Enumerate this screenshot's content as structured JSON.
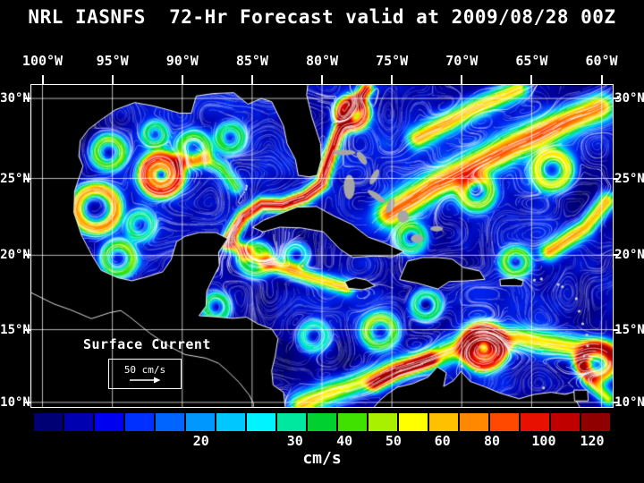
{
  "title": "NRL IASNFS  72-Hr Forecast valid at 2009/08/28 00Z",
  "axes": {
    "lon_ticks": [
      {
        "label": "100°W",
        "lon": -100
      },
      {
        "label": "95°W",
        "lon": -95
      },
      {
        "label": "90°W",
        "lon": -90
      },
      {
        "label": "85°W",
        "lon": -85
      },
      {
        "label": "80°W",
        "lon": -80
      },
      {
        "label": "75°W",
        "lon": -75
      },
      {
        "label": "70°W",
        "lon": -70
      },
      {
        "label": "65°W",
        "lon": -65
      },
      {
        "label": "60°W",
        "lon": -60
      }
    ],
    "lat_ticks": [
      {
        "label": "30°N",
        "lat": 30
      },
      {
        "label": "25°N",
        "lat": 25
      },
      {
        "label": "20°N",
        "lat": 20
      },
      {
        "label": "15°N",
        "lat": 15
      },
      {
        "label": "10°N",
        "lat": 10
      }
    ]
  },
  "map_overlay": {
    "caption": "Surface Current",
    "scale_text": "50 cm/s"
  },
  "colorbar": {
    "units": "cm/s",
    "segment_colors": [
      "#000074",
      "#0000b0",
      "#0000f0",
      "#0030ff",
      "#0064ff",
      "#0098ff",
      "#00c8ff",
      "#00f4ff",
      "#00e8a0",
      "#00d030",
      "#40e000",
      "#a8f000",
      "#ffff00",
      "#ffc000",
      "#ff8800",
      "#ff4800",
      "#e81000",
      "#c00000",
      "#900000"
    ],
    "tick_labels": [
      {
        "label": "20",
        "pct": 29.0
      },
      {
        "label": "30",
        "pct": 45.3
      },
      {
        "label": "40",
        "pct": 53.9
      },
      {
        "label": "50",
        "pct": 62.4
      },
      {
        "label": "60",
        "pct": 70.9
      },
      {
        "label": "80",
        "pct": 79.5
      },
      {
        "label": "100",
        "pct": 88.5
      },
      {
        "label": "120",
        "pct": 96.9
      }
    ]
  }
}
